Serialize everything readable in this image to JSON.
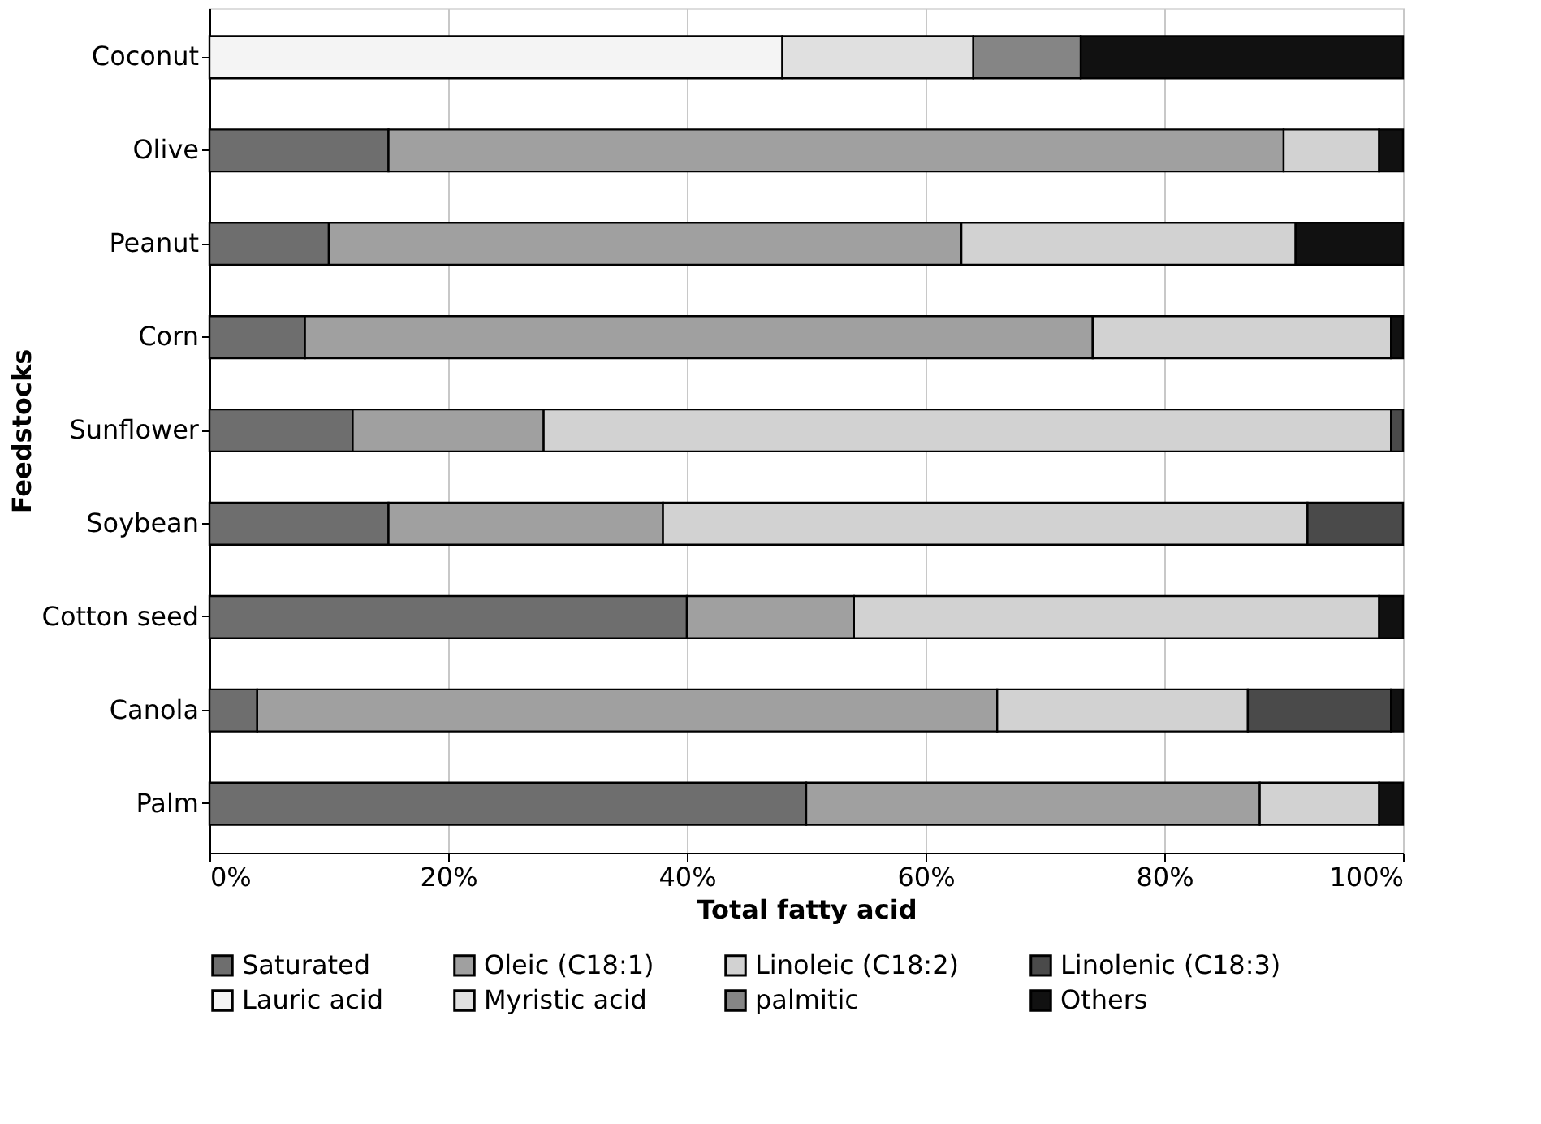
{
  "chart_data": {
    "type": "bar",
    "orientation": "horizontal",
    "stacked": true,
    "xlabel": "Total fatty acid",
    "ylabel": "Feedstocks",
    "categories": [
      "Coconut",
      "Olive",
      "Peanut",
      "Corn",
      "Sunflower",
      "Soybean",
      "Cotton seed",
      "Canola",
      "Palm"
    ],
    "series": [
      {
        "name": "Saturated",
        "color": "#6e6e6e",
        "values": [
          null,
          15,
          10,
          8,
          12,
          15,
          40,
          4,
          50
        ]
      },
      {
        "name": "Oleic (C18:1)",
        "color": "#a0a0a0",
        "values": [
          null,
          75,
          53,
          66,
          16,
          23,
          14,
          62,
          38
        ]
      },
      {
        "name": "Linoleic (C18:2)",
        "color": "#d2d2d2",
        "values": [
          null,
          8,
          28,
          25,
          71,
          54,
          44,
          21,
          10
        ]
      },
      {
        "name": "Linolenic (C18:3)",
        "color": "#4a4a4a",
        "values": [
          null,
          null,
          null,
          null,
          1,
          8,
          null,
          12,
          null
        ]
      },
      {
        "name": "Lauric acid",
        "color": "#f4f4f4",
        "values": [
          48,
          null,
          null,
          null,
          null,
          null,
          null,
          null,
          null
        ]
      },
      {
        "name": "Myristic acid",
        "color": "#e0e0e0",
        "values": [
          16,
          null,
          null,
          null,
          null,
          null,
          null,
          null,
          null
        ]
      },
      {
        "name": "palmitic",
        "color": "#858585",
        "values": [
          9,
          null,
          null,
          null,
          null,
          null,
          null,
          null,
          null
        ]
      },
      {
        "name": "Others",
        "color": "#111111",
        "values": [
          27,
          2,
          9,
          1,
          null,
          null,
          2,
          1,
          2
        ]
      }
    ],
    "xlim": [
      0,
      100
    ],
    "xticks": [
      {
        "value": 0,
        "label": "0%"
      },
      {
        "value": 20,
        "label": "20%"
      },
      {
        "value": 40,
        "label": "40%"
      },
      {
        "value": 60,
        "label": "60%"
      },
      {
        "value": 80,
        "label": "80%"
      },
      {
        "value": 100,
        "label": "100%"
      }
    ],
    "grid": "x",
    "legend": "bottom"
  }
}
